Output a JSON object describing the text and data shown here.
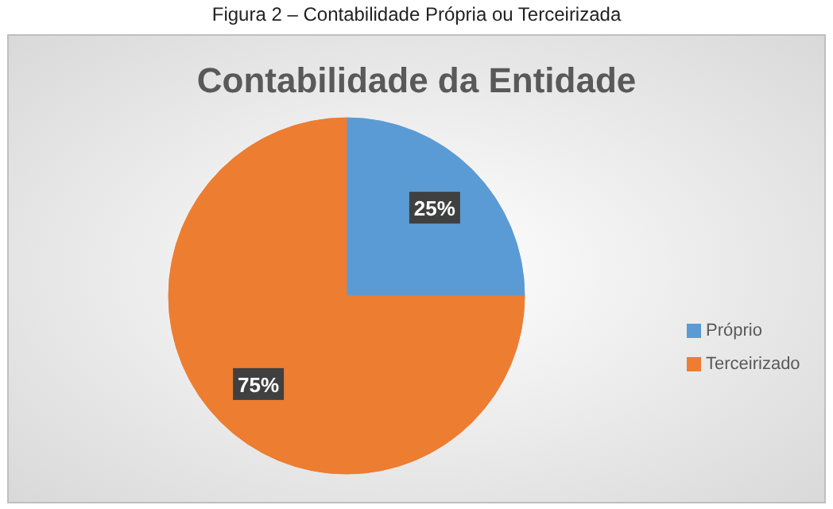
{
  "chart_data": {
    "type": "pie",
    "title": "Contabilidade da Entidade",
    "annotations": [
      "Figura 2 – Contabilidade Própria ou Terceirizada"
    ],
    "categories": [
      "Próprio",
      "Terceirizado"
    ],
    "values": [
      25,
      75
    ],
    "colors": [
      "#5b9bd5",
      "#ed7d31"
    ],
    "value_labels": [
      "25%",
      "75%"
    ],
    "legend": "right"
  }
}
